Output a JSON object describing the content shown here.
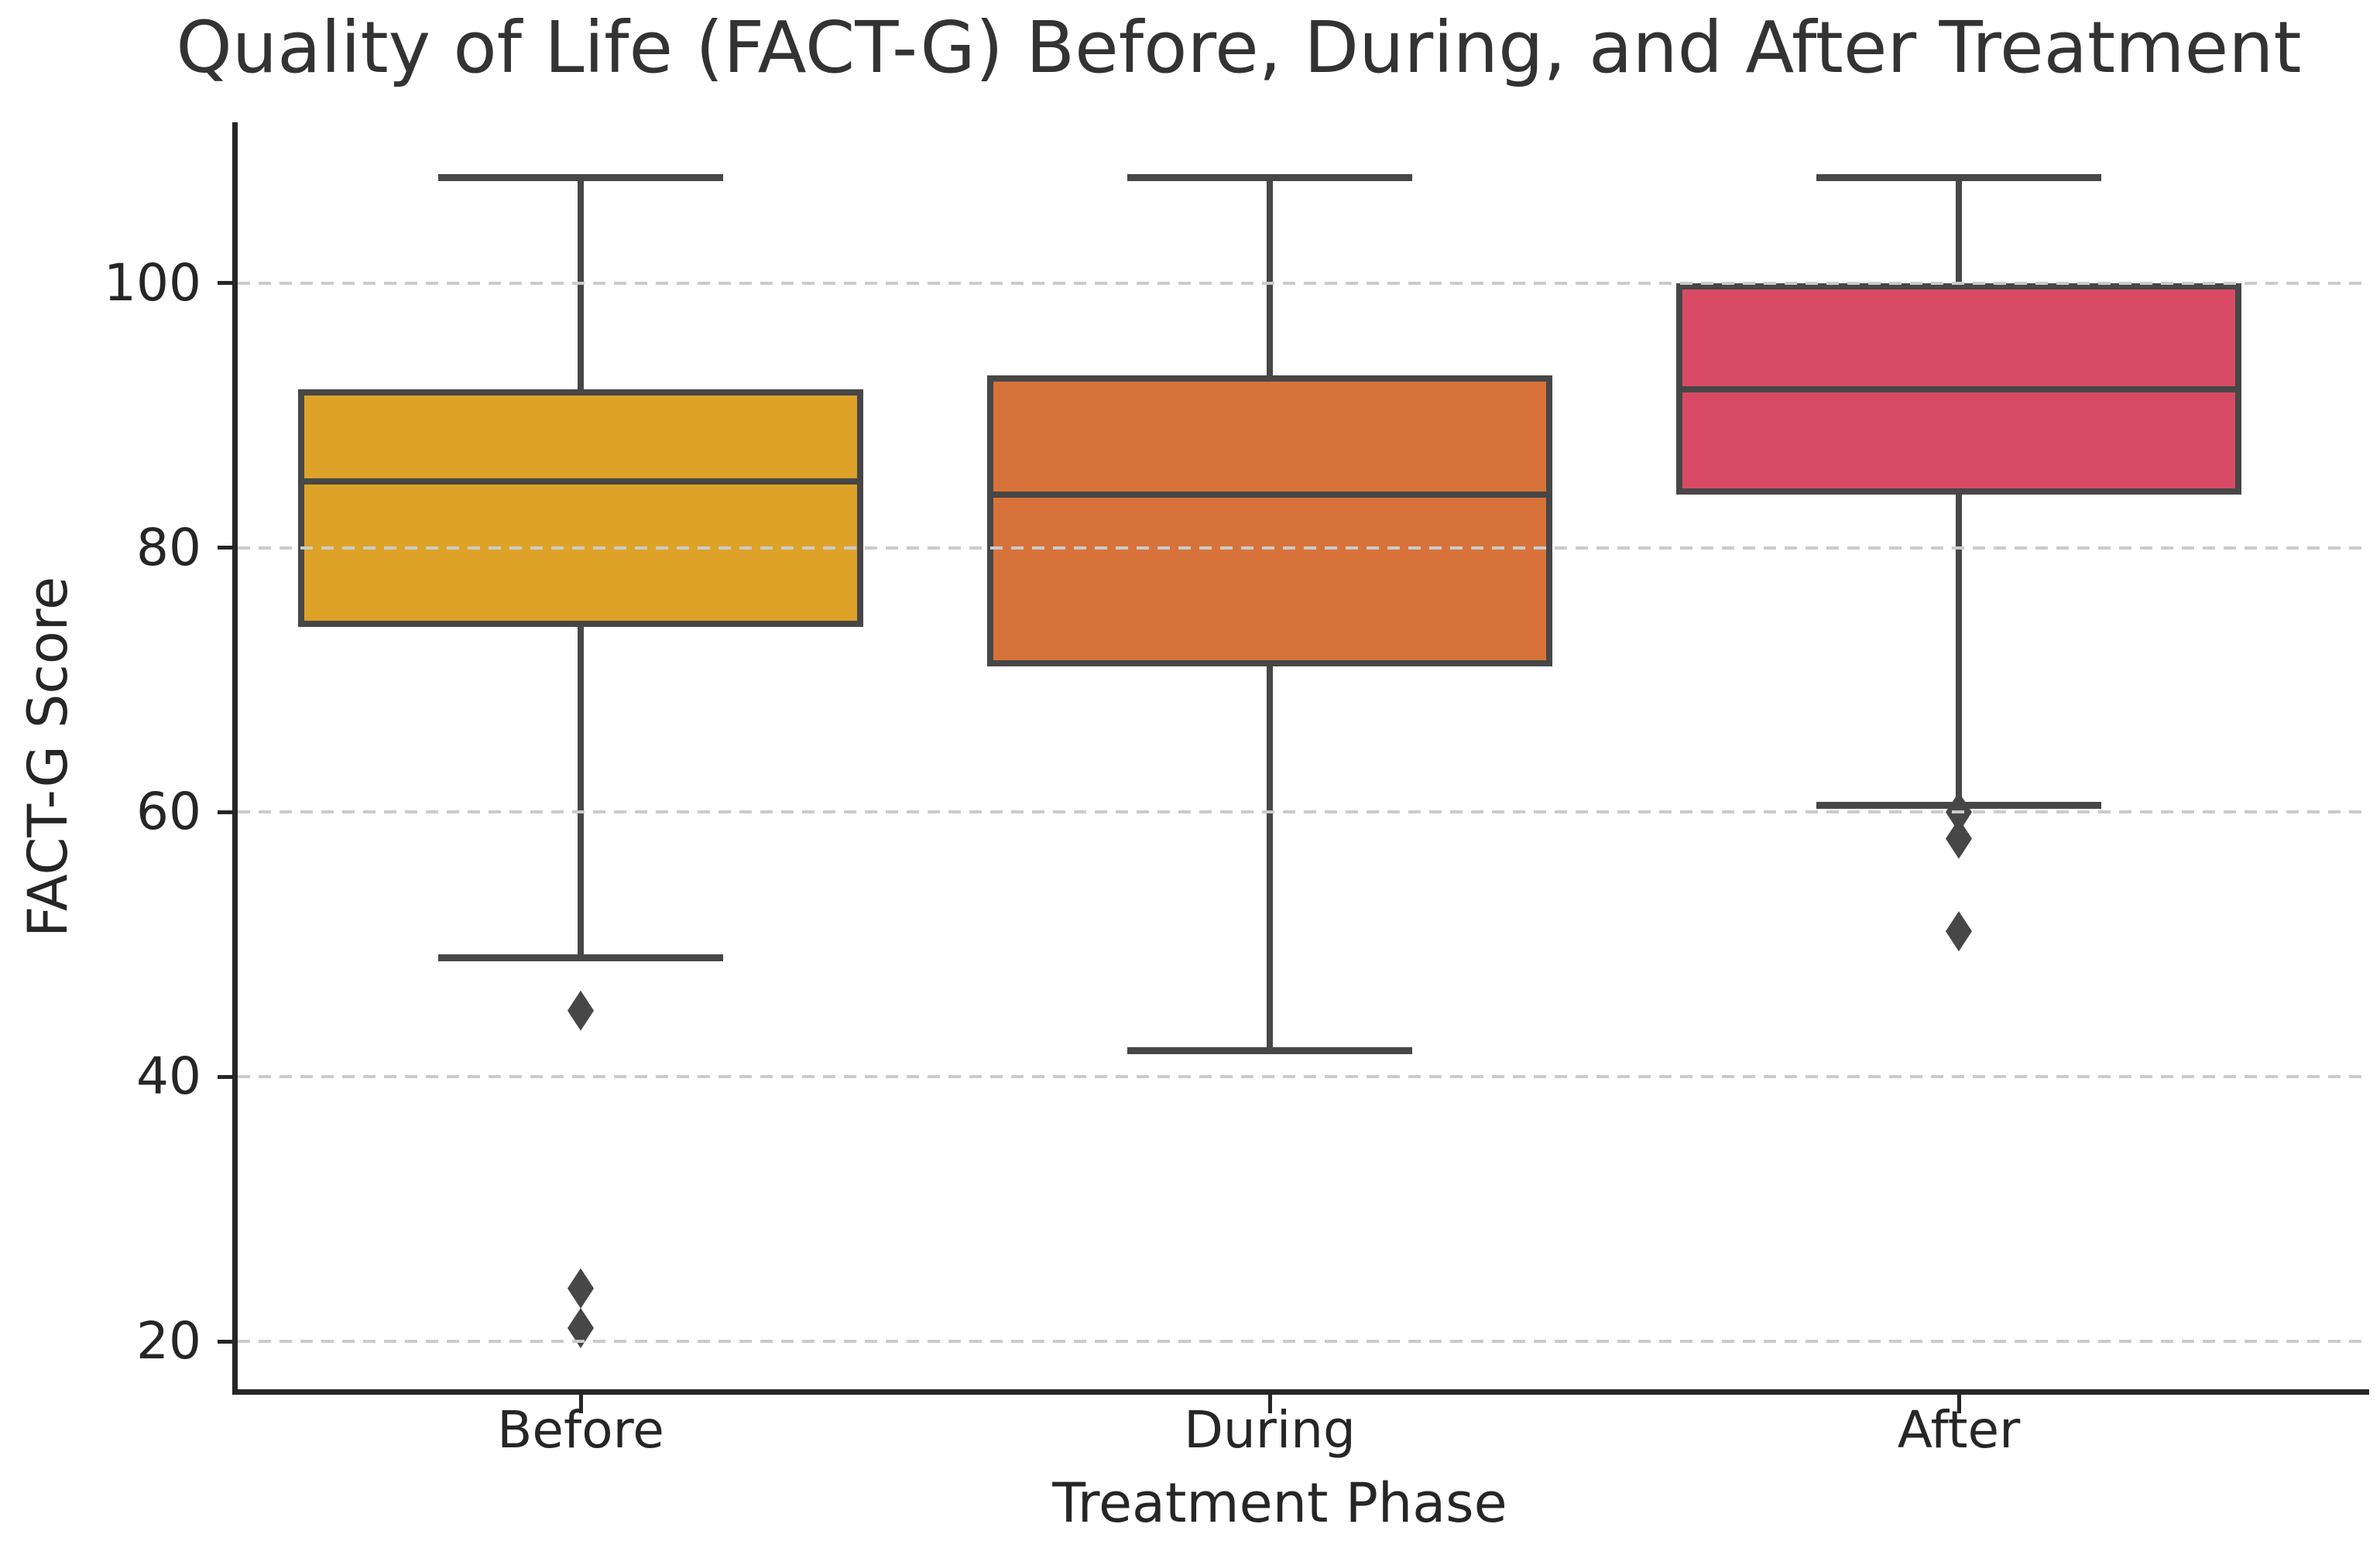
{
  "chart_data": {
    "type": "boxplot",
    "title": "Quality of Life (FACT-G) Before, During, and After Treatment",
    "xlabel": "Treatment Phase",
    "ylabel": "FACT-G Score",
    "categories": [
      "Before",
      "During",
      "After"
    ],
    "yticks": [
      20,
      40,
      60,
      80,
      100
    ],
    "ylim": [
      15,
      112
    ],
    "grid": "horizontal-dashed",
    "grid_color": "#cbcbcb",
    "line_color": "#474747",
    "spine_color": "#262626",
    "text_color": "#262626",
    "background_color": "#ffffff",
    "flier_marker": "thin-diamond",
    "series": [
      {
        "name": "Before",
        "color": "#DDA227",
        "whisker_low": 49,
        "q1": 74,
        "median": 85,
        "q3": 92,
        "whisker_high": 108,
        "outliers": [
          45,
          24,
          21
        ]
      },
      {
        "name": "During",
        "color": "#D7733A",
        "whisker_low": 42,
        "q1": 71,
        "median": 84,
        "q3": 93,
        "whisker_high": 108,
        "outliers": []
      },
      {
        "name": "After",
        "color": "#D94A64",
        "whisker_low": 60.5,
        "q1": 84,
        "median": 92,
        "q3": 100,
        "whisker_high": 108,
        "outliers": [
          60,
          58,
          51
        ]
      }
    ]
  }
}
